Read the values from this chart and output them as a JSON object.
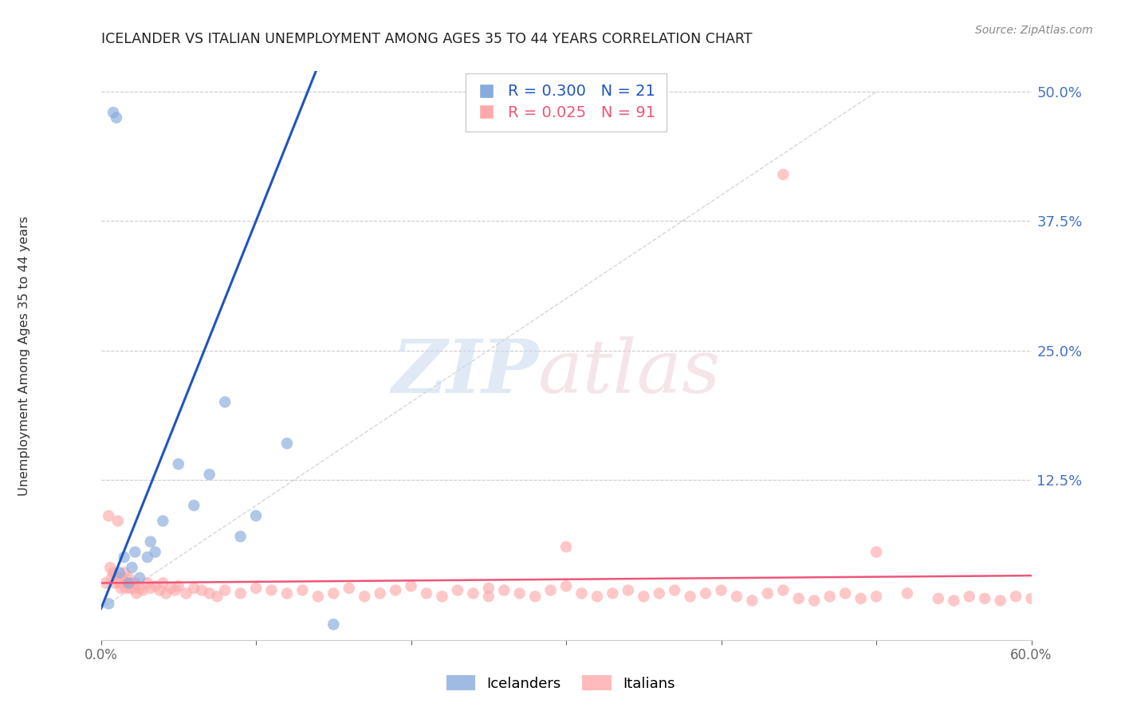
{
  "title": "ICELANDER VS ITALIAN UNEMPLOYMENT AMONG AGES 35 TO 44 YEARS CORRELATION CHART",
  "source": "Source: ZipAtlas.com",
  "ylabel": "Unemployment Among Ages 35 to 44 years",
  "xlim": [
    0.0,
    0.6
  ],
  "ylim": [
    -0.03,
    0.52
  ],
  "legend_blue_R": "0.300",
  "legend_blue_N": "21",
  "legend_pink_R": "0.025",
  "legend_pink_N": "91",
  "legend_blue_label": "Icelanders",
  "legend_pink_label": "Italians",
  "blue_color": "#88AADD",
  "pink_color": "#FFAAAA",
  "trend_blue_color": "#2255BB",
  "trend_pink_color": "#EE5577",
  "diag_color": "#CCCCCC",
  "background_color": "#FFFFFF",
  "grid_color": "#CCCCCC",
  "blue_x": [
    0.005,
    0.008,
    0.01,
    0.012,
    0.015,
    0.018,
    0.02,
    0.022,
    0.025,
    0.03,
    0.032,
    0.035,
    0.04,
    0.05,
    0.06,
    0.07,
    0.08,
    0.09,
    0.1,
    0.12,
    0.15
  ],
  "blue_y": [
    0.005,
    0.48,
    0.475,
    0.035,
    0.05,
    0.025,
    0.04,
    0.055,
    0.03,
    0.05,
    0.065,
    0.055,
    0.085,
    0.14,
    0.1,
    0.13,
    0.2,
    0.07,
    0.09,
    0.16,
    -0.015
  ],
  "pink_x": [
    0.003,
    0.005,
    0.006,
    0.007,
    0.008,
    0.009,
    0.01,
    0.011,
    0.012,
    0.013,
    0.014,
    0.015,
    0.016,
    0.017,
    0.018,
    0.019,
    0.02,
    0.021,
    0.022,
    0.023,
    0.025,
    0.027,
    0.03,
    0.032,
    0.035,
    0.038,
    0.04,
    0.042,
    0.045,
    0.048,
    0.05,
    0.055,
    0.06,
    0.065,
    0.07,
    0.075,
    0.08,
    0.09,
    0.1,
    0.11,
    0.12,
    0.13,
    0.14,
    0.15,
    0.16,
    0.17,
    0.18,
    0.19,
    0.2,
    0.21,
    0.22,
    0.23,
    0.24,
    0.25,
    0.26,
    0.27,
    0.28,
    0.29,
    0.3,
    0.31,
    0.32,
    0.33,
    0.34,
    0.35,
    0.36,
    0.37,
    0.38,
    0.39,
    0.4,
    0.41,
    0.42,
    0.43,
    0.44,
    0.45,
    0.46,
    0.47,
    0.48,
    0.49,
    0.5,
    0.52,
    0.54,
    0.55,
    0.56,
    0.57,
    0.58,
    0.59,
    0.6,
    0.5,
    0.44,
    0.3,
    0.25
  ],
  "pink_y": [
    0.025,
    0.09,
    0.04,
    0.03,
    0.035,
    0.025,
    0.03,
    0.085,
    0.025,
    0.02,
    0.03,
    0.035,
    0.02,
    0.025,
    0.03,
    0.02,
    0.025,
    0.02,
    0.025,
    0.015,
    0.02,
    0.018,
    0.025,
    0.02,
    0.022,
    0.018,
    0.025,
    0.015,
    0.02,
    0.018,
    0.022,
    0.015,
    0.02,
    0.018,
    0.015,
    0.012,
    0.018,
    0.015,
    0.02,
    0.018,
    0.015,
    0.018,
    0.012,
    0.015,
    0.02,
    0.012,
    0.015,
    0.018,
    0.022,
    0.015,
    0.012,
    0.018,
    0.015,
    0.012,
    0.018,
    0.015,
    0.012,
    0.018,
    0.022,
    0.015,
    0.012,
    0.015,
    0.018,
    0.012,
    0.015,
    0.018,
    0.012,
    0.015,
    0.018,
    0.012,
    0.008,
    0.015,
    0.018,
    0.01,
    0.008,
    0.012,
    0.015,
    0.01,
    0.012,
    0.015,
    0.01,
    0.008,
    0.012,
    0.01,
    0.008,
    0.012,
    0.01,
    0.055,
    0.42,
    0.06,
    0.02
  ]
}
